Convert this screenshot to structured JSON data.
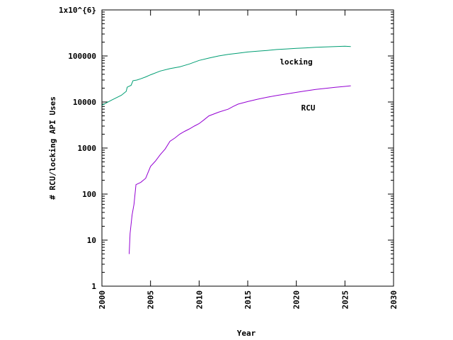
{
  "chart_data": {
    "type": "line",
    "title": "",
    "xlabel": "Year",
    "ylabel": "# RCU/locking API Uses",
    "xlim": [
      2000,
      2030
    ],
    "ylim": [
      1,
      1000000
    ],
    "yscale": "log",
    "grid": false,
    "legend": "inline labels next to each series",
    "x_ticks": [
      "2000",
      "2005",
      "2010",
      "2015",
      "2020",
      "2025",
      "2030"
    ],
    "y_ticks": [
      "1",
      "10",
      "100",
      "1000",
      "10000",
      "100000",
      "1x10^{6}"
    ],
    "series": [
      {
        "name": "locking",
        "color": "#009e73",
        "label_at": [
          2018.3,
          65000
        ],
        "x": [
          2000.0,
          2001.0,
          2002.0,
          2002.5,
          2002.6,
          2003.0,
          2003.2,
          2003.6,
          2004.0,
          2004.5,
          2005.0,
          2006.0,
          2007.0,
          2008.0,
          2009.0,
          2010.0,
          2011.0,
          2012.0,
          2013.0,
          2014.0,
          2015.0,
          2016.0,
          2017.0,
          2018.0,
          2019.0,
          2020.0,
          2021.0,
          2022.0,
          2023.0,
          2024.0,
          2025.0,
          2025.6
        ],
        "y": [
          8500,
          11000,
          14000,
          17000,
          21000,
          23000,
          29000,
          30000,
          32000,
          35000,
          39000,
          47000,
          53000,
          58000,
          67000,
          80000,
          90000,
          100000,
          108000,
          115000,
          122000,
          127000,
          132000,
          138000,
          142000,
          146000,
          150000,
          154000,
          157000,
          160000,
          163000,
          160000
        ]
      },
      {
        "name": "RCU",
        "color": "#9400d3",
        "label_at": [
          2020.5,
          6500
        ],
        "x": [
          2002.8,
          2002.9,
          2003.1,
          2003.3,
          2003.5,
          2004.0,
          2004.5,
          2005.0,
          2005.5,
          2006.0,
          2006.5,
          2007.0,
          2007.5,
          2008.0,
          2008.5,
          2009.0,
          2009.5,
          2010.0,
          2010.5,
          2011.0,
          2012.0,
          2013.0,
          2013.5,
          2014.0,
          2015.0,
          2016.0,
          2017.0,
          2018.0,
          2019.0,
          2020.0,
          2021.0,
          2022.0,
          2023.0,
          2024.0,
          2025.0,
          2025.6
        ],
        "y": [
          5,
          14,
          35,
          60,
          160,
          180,
          220,
          400,
          520,
          720,
          950,
          1400,
          1650,
          2000,
          2300,
          2600,
          3000,
          3400,
          4100,
          5000,
          6000,
          7000,
          8000,
          9000,
          10200,
          11500,
          12700,
          13900,
          15000,
          16200,
          17500,
          18700,
          19800,
          20800,
          21800,
          22500
        ]
      }
    ]
  }
}
